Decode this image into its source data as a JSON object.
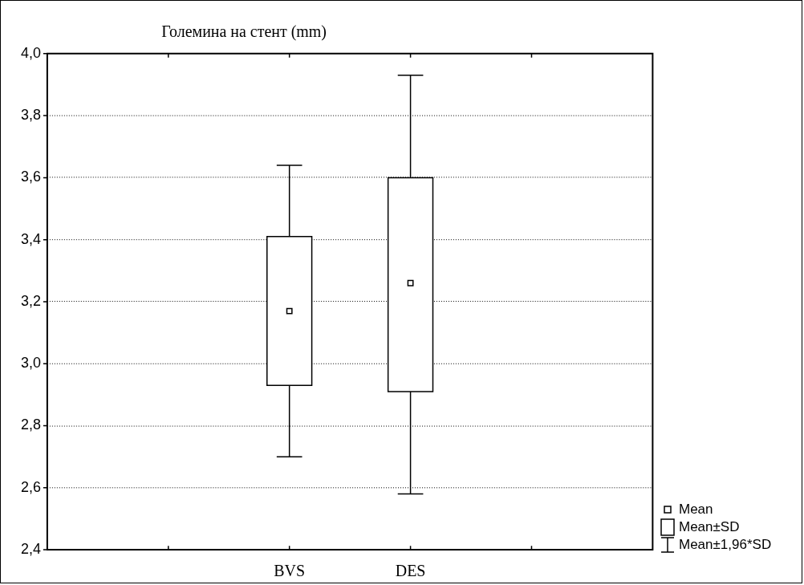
{
  "chart_data": {
    "type": "box",
    "title": "Големина на стент (mm)",
    "categories": [
      null,
      null,
      "BVS",
      "DES",
      null,
      null
    ],
    "boxes": [
      null,
      null,
      {
        "low": 2.7,
        "q1": 2.93,
        "q3": 3.41,
        "high": 3.64,
        "mean": 3.17
      },
      {
        "low": 2.58,
        "q1": 2.91,
        "q3": 3.6,
        "high": 3.93,
        "mean": 3.26
      },
      null,
      null
    ],
    "color": "#ffffff",
    "ylim": [
      2.4,
      4.0
    ],
    "yticks": [
      {
        "value": 2.4,
        "label": "2,4"
      },
      {
        "value": 2.6,
        "label": "2,6"
      },
      {
        "value": 2.8,
        "label": "2,8"
      },
      {
        "value": 3.0,
        "label": "3,0"
      },
      {
        "value": 3.2,
        "label": "3,2"
      },
      {
        "value": 3.4,
        "label": "3,4"
      },
      {
        "value": 3.6,
        "label": "3,6"
      },
      {
        "value": 3.8,
        "label": "3,8"
      },
      {
        "value": 4.0,
        "label": "4,0"
      }
    ],
    "grid": "y",
    "annotations": [
      "Mean",
      "Mean±SD",
      "Mean±1,96*SD"
    ]
  }
}
